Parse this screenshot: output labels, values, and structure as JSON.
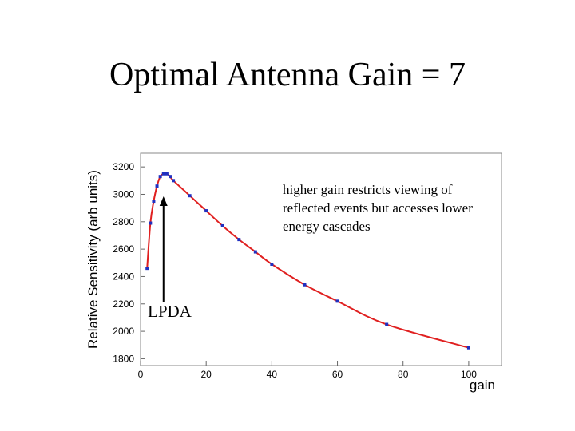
{
  "slide": {
    "title": "Optimal Antenna Gain = 7"
  },
  "chart_data": {
    "type": "line",
    "xlabel": "gain",
    "ylabel": "Relative Sensitivity (arb units)",
    "xlim": [
      0,
      110
    ],
    "ylim": [
      1750,
      3300
    ],
    "x_ticks": [
      0,
      20,
      40,
      60,
      80,
      100
    ],
    "y_ticks": [
      1800,
      2000,
      2200,
      2400,
      2600,
      2800,
      3000,
      3200
    ],
    "series": [
      {
        "color": "#e02020",
        "marker_color": "#2030c0",
        "points": [
          [
            2,
            2460
          ],
          [
            3,
            2790
          ],
          [
            4,
            2950
          ],
          [
            5,
            3060
          ],
          [
            6,
            3130
          ],
          [
            7,
            3150
          ],
          [
            8,
            3150
          ],
          [
            9,
            3130
          ],
          [
            10,
            3100
          ],
          [
            15,
            2990
          ],
          [
            20,
            2880
          ],
          [
            25,
            2770
          ],
          [
            30,
            2670
          ],
          [
            35,
            2580
          ],
          [
            40,
            2490
          ],
          [
            50,
            2340
          ],
          [
            60,
            2220
          ],
          [
            75,
            2050
          ],
          [
            100,
            1880
          ]
        ]
      }
    ],
    "annotations": {
      "note": "higher gain restricts viewing of reflected events but accesses lower energy cascades",
      "arrow_label": "LPDA",
      "arrow_target_x": 7
    },
    "grid": false,
    "legend": "none"
  }
}
